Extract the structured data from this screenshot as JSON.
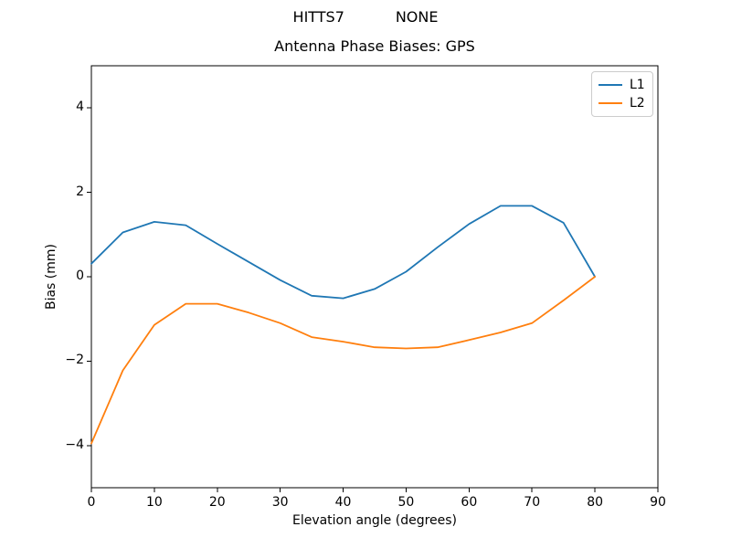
{
  "figure": {
    "suptitle": "HITTS7           NONE",
    "title": "Antenna Phase Biases: GPS"
  },
  "chart_data": {
    "type": "line",
    "suptitle": "HITTS7           NONE",
    "title": "Antenna Phase Biases: GPS",
    "xlabel": "Elevation angle (degrees)",
    "ylabel": "Bias (mm)",
    "xlim": [
      0,
      90
    ],
    "ylim": [
      -5,
      5
    ],
    "grid": false,
    "legend_position": "upper right",
    "x_ticks": [
      0,
      10,
      20,
      30,
      40,
      50,
      60,
      70,
      80,
      90
    ],
    "x_tick_labels": [
      "0",
      "10",
      "20",
      "30",
      "40",
      "50",
      "60",
      "70",
      "80",
      "90"
    ],
    "y_ticks": [
      -4,
      -2,
      0,
      2,
      4
    ],
    "y_tick_labels": [
      "−4",
      "−2",
      "0",
      "2",
      "4"
    ],
    "x": [
      0,
      5,
      10,
      15,
      20,
      25,
      30,
      35,
      40,
      45,
      50,
      55,
      60,
      65,
      70,
      75,
      80
    ],
    "series": [
      {
        "name": "L1",
        "color": "#1f77b4",
        "values": [
          0.31,
          1.05,
          1.3,
          1.22,
          0.78,
          0.35,
          -0.08,
          -0.45,
          -0.51,
          -0.29,
          0.12,
          0.7,
          1.25,
          1.68,
          1.68,
          1.28,
          0.0
        ]
      },
      {
        "name": "L2",
        "color": "#ff7f0e",
        "values": [
          -3.95,
          -2.22,
          -1.14,
          -0.64,
          -0.64,
          -0.85,
          -1.1,
          -1.43,
          -1.54,
          -1.67,
          -1.7,
          -1.67,
          -1.5,
          -1.32,
          -1.1,
          -0.56,
          0.0
        ]
      }
    ]
  }
}
